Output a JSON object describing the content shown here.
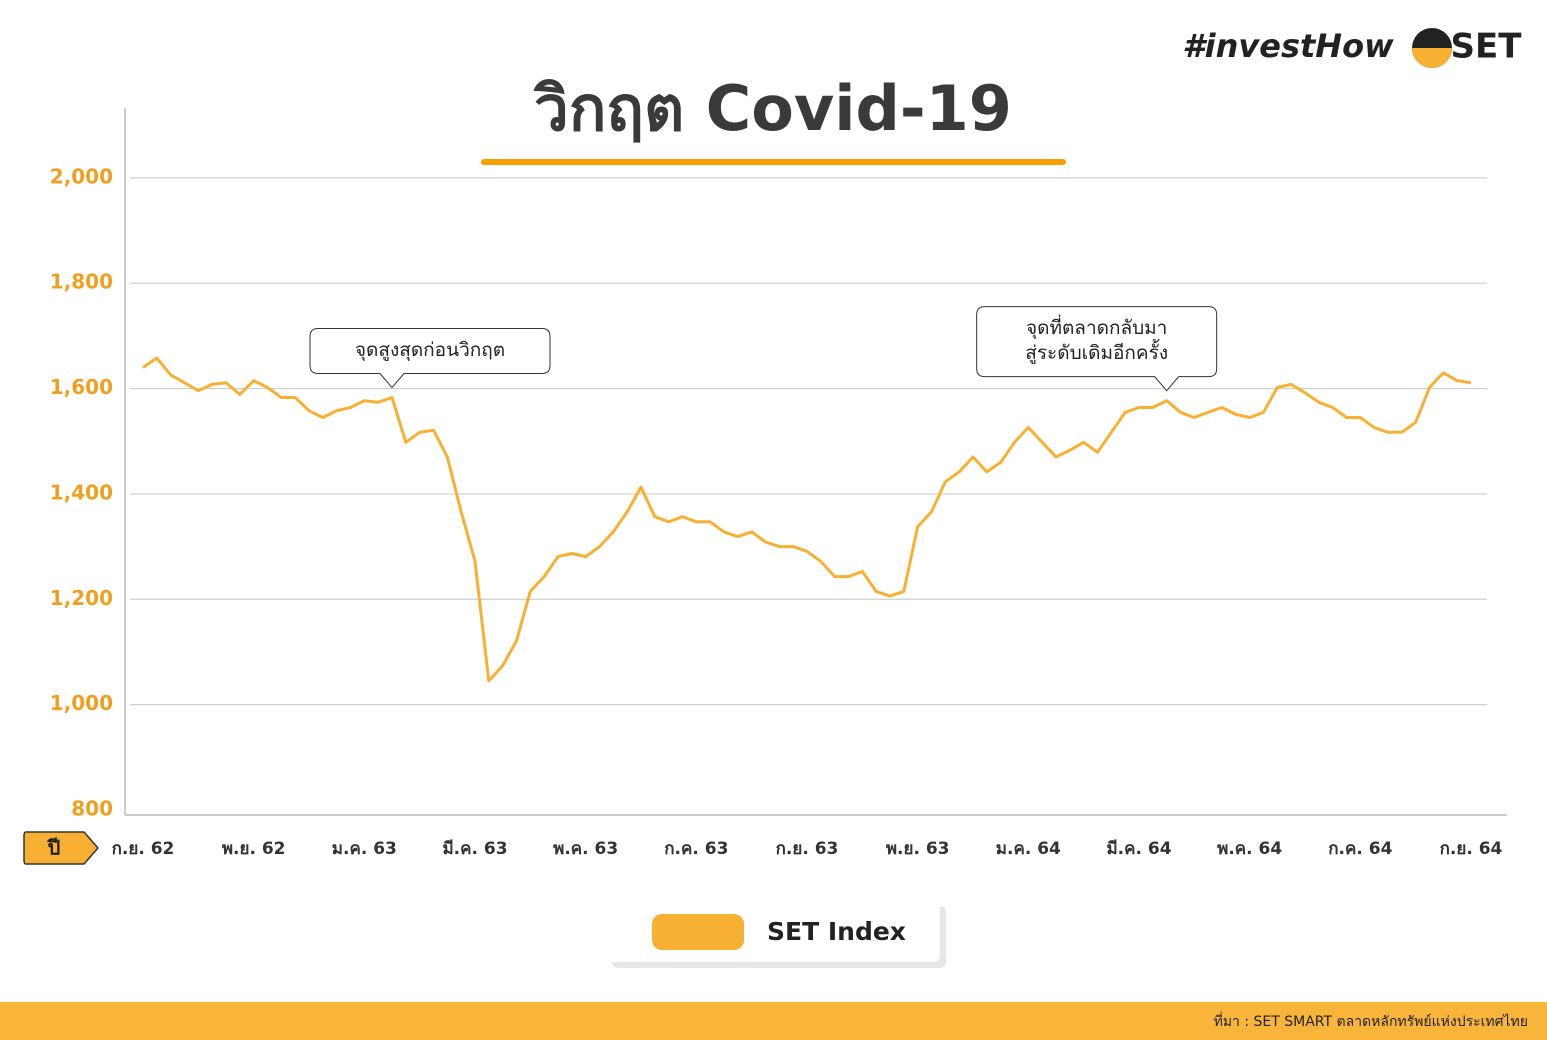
{
  "brand": {
    "hashtag": "#investHow",
    "logo": "SET"
  },
  "year_marker": "ปี",
  "source": "ที่มา : SET SMART ตลาดหลักทรัพย์แห่งประเทศไทย",
  "chart_data": {
    "type": "line",
    "title": "วิกฤต Covid-19",
    "annotations": [
      {
        "lines": [
          "จุดสูงสุดก่อนวิกฤต"
        ],
        "index": 18
      },
      {
        "lines": [
          "จุดที่ตลาดกลับมา",
          "สู่ระดับเดิมอีกครั้ง"
        ],
        "index": 74
      }
    ],
    "categories": [
      "ก.ย. 62",
      null,
      null,
      null,
      null,
      null,
      null,
      null,
      "พ.ย. 62",
      null,
      null,
      null,
      null,
      null,
      null,
      null,
      "ม.ค. 63",
      null,
      null,
      null,
      null,
      null,
      null,
      null,
      "มี.ค. 63",
      null,
      null,
      null,
      null,
      null,
      null,
      null,
      "พ.ค. 63",
      null,
      null,
      null,
      null,
      null,
      null,
      null,
      "ก.ค. 63",
      null,
      null,
      null,
      null,
      null,
      null,
      null,
      "ก.ย. 63",
      null,
      null,
      null,
      null,
      null,
      null,
      null,
      "พ.ย. 63",
      null,
      null,
      null,
      null,
      null,
      null,
      null,
      "ม.ค. 64",
      null,
      null,
      null,
      null,
      null,
      null,
      null,
      "มี.ค. 64",
      null,
      null,
      null,
      null,
      null,
      null,
      null,
      "พ.ค. 64",
      null,
      null,
      null,
      null,
      null,
      null,
      null,
      "ก.ค. 64",
      null,
      null,
      null,
      null,
      null,
      null,
      null,
      "ก.ย. 64"
    ],
    "series": [
      {
        "name": "SET Index",
        "color": "#f7b032",
        "values": [
          1640,
          1658,
          1626,
          1611,
          1596,
          1608,
          1611,
          1589,
          1615,
          1602,
          1583,
          1583,
          1558,
          1545,
          1558,
          1564,
          1577,
          1574,
          1583,
          1498,
          1517,
          1521,
          1470,
          1366,
          1272,
          1045,
          1074,
          1121,
          1215,
          1243,
          1281,
          1287,
          1281,
          1300,
          1328,
          1366,
          1413,
          1357,
          1347,
          1357,
          1347,
          1347,
          1328,
          1319,
          1328,
          1309,
          1300,
          1300,
          1291,
          1272,
          1243,
          1243,
          1253,
          1215,
          1206,
          1215,
          1338,
          1366,
          1423,
          1442,
          1470,
          1442,
          1460,
          1498,
          1526,
          1498,
          1470,
          1483,
          1498,
          1479,
          1517,
          1555,
          1564,
          1564,
          1577,
          1555,
          1545,
          1555,
          1564,
          1551,
          1545,
          1555,
          1602,
          1608,
          1592,
          1574,
          1564,
          1545,
          1545,
          1526,
          1517,
          1517,
          1536,
          1602,
          1630,
          1615,
          1611
        ]
      }
    ],
    "ylim": [
      800,
      2125
    ],
    "yticks": [
      800,
      {
        "value": 1000,
        "label": "1,000"
      },
      {
        "value": 1200,
        "label": "1,200"
      },
      {
        "value": 1400,
        "label": "1,400"
      },
      {
        "value": 1600,
        "label": "1,600"
      },
      {
        "value": 1800,
        "label": "1,800"
      },
      {
        "value": 2000,
        "label": "2,000"
      }
    ],
    "grid": true,
    "legend": "bottom"
  }
}
